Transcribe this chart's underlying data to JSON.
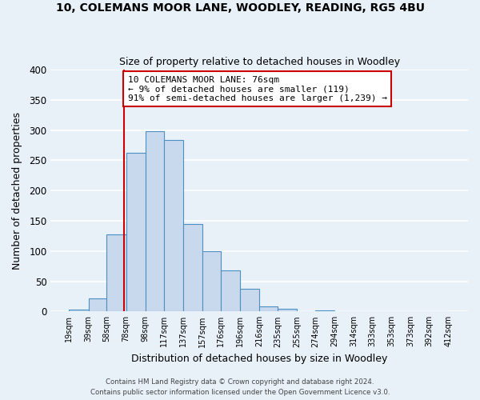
{
  "title": "10, COLEMANS MOOR LANE, WOODLEY, READING, RG5 4BU",
  "subtitle": "Size of property relative to detached houses in Woodley",
  "xlabel": "Distribution of detached houses by size in Woodley",
  "ylabel": "Number of detached properties",
  "bar_left_edges": [
    19,
    39,
    58,
    78,
    98,
    117,
    137,
    157,
    176,
    196,
    216,
    235,
    255,
    274,
    294,
    314,
    333,
    353,
    373,
    392
  ],
  "bar_heights": [
    3,
    22,
    128,
    263,
    298,
    284,
    145,
    99,
    68,
    37,
    9,
    5,
    1,
    2,
    1,
    1,
    1,
    0,
    1,
    1
  ],
  "bar_widths": [
    20,
    19,
    20,
    20,
    19,
    20,
    20,
    19,
    20,
    20,
    19,
    20,
    19,
    20,
    20,
    19,
    20,
    20,
    19,
    20
  ],
  "xtick_labels": [
    "19sqm",
    "39sqm",
    "58sqm",
    "78sqm",
    "98sqm",
    "117sqm",
    "137sqm",
    "157sqm",
    "176sqm",
    "196sqm",
    "216sqm",
    "235sqm",
    "255sqm",
    "274sqm",
    "294sqm",
    "314sqm",
    "333sqm",
    "353sqm",
    "373sqm",
    "392sqm",
    "412sqm"
  ],
  "xtick_positions": [
    19,
    39,
    58,
    78,
    98,
    117,
    137,
    157,
    176,
    196,
    216,
    235,
    255,
    274,
    294,
    314,
    333,
    353,
    373,
    392,
    412
  ],
  "ylim": [
    0,
    400
  ],
  "yticks": [
    0,
    50,
    100,
    150,
    200,
    250,
    300,
    350,
    400
  ],
  "xlim": [
    0,
    432
  ],
  "bar_color": "#c8d9ed",
  "bar_edge_color": "#4a90c4",
  "background_color": "#e8f0f8",
  "grid_color": "#ffffff",
  "vline_x": 76,
  "vline_color": "#cc0000",
  "annotation_lines": [
    "10 COLEMANS MOOR LANE: 76sqm",
    "← 9% of detached houses are smaller (119)",
    "91% of semi-detached houses are larger (1,239) →"
  ],
  "footer_line1": "Contains HM Land Registry data © Crown copyright and database right 2024.",
  "footer_line2": "Contains public sector information licensed under the Open Government Licence v3.0."
}
